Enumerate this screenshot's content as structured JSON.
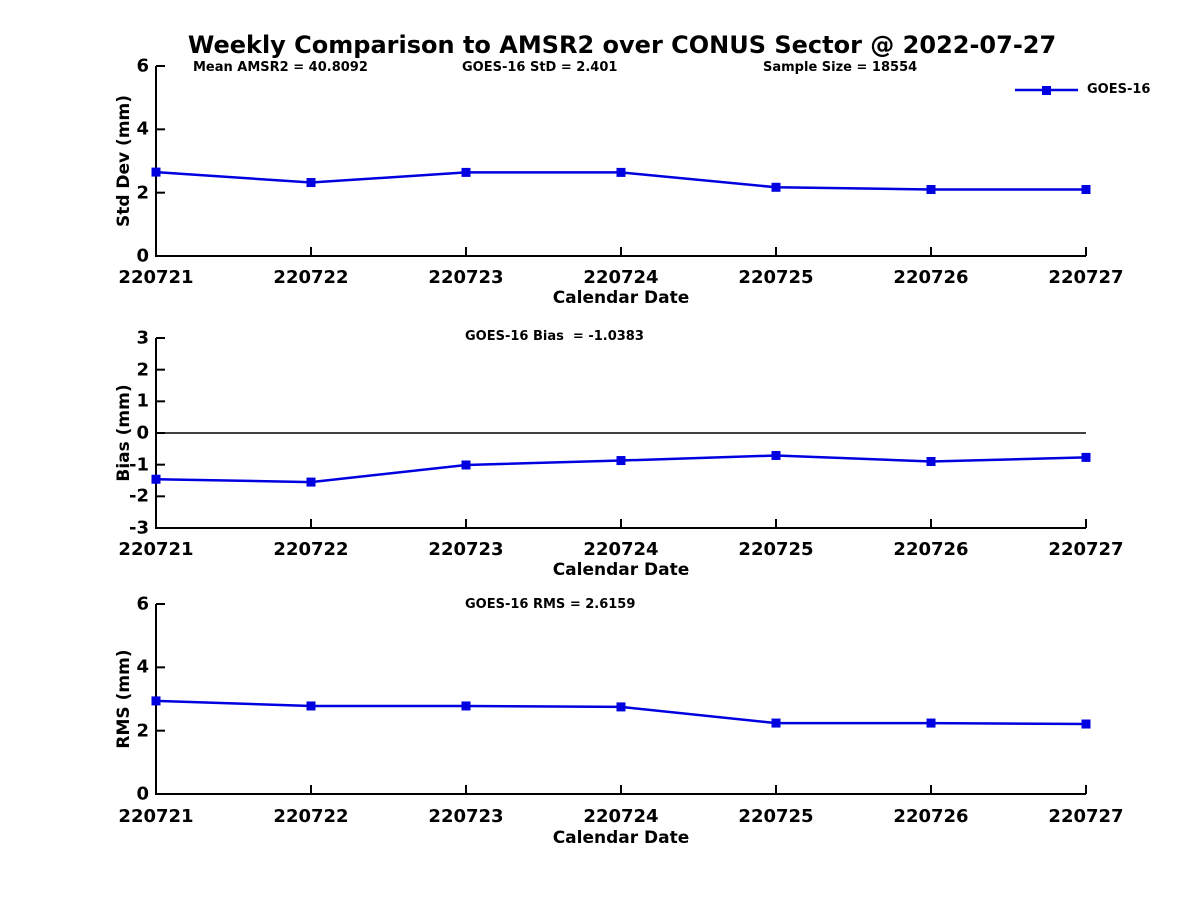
{
  "title": "Weekly Comparison to AMSR2 over CONUS Sector @ 2022-07-27",
  "legend": {
    "label": "GOES-16"
  },
  "colors": {
    "line": "#0000e0",
    "axis": "#000000"
  },
  "chart_data": [
    {
      "id": "std-dev",
      "type": "line",
      "ylabel": "Std Dev (mm)",
      "xlabel": "Calendar Date",
      "ylim": [
        0,
        6
      ],
      "yticks": [
        0,
        2,
        4,
        6
      ],
      "categories": [
        "220721",
        "220722",
        "220723",
        "220724",
        "220725",
        "220726",
        "220727"
      ],
      "series": [
        {
          "name": "GOES-16",
          "values": [
            2.65,
            2.32,
            2.64,
            2.64,
            2.17,
            2.1,
            2.1
          ]
        }
      ],
      "annotations": [
        "Mean AMSR2 = 40.8092",
        "GOES-16 StD = 2.401",
        "Sample Size = 18554"
      ],
      "zero_line": false,
      "legend_position": "top-right",
      "grid": false
    },
    {
      "id": "bias",
      "type": "line",
      "ylabel": "Bias (mm)",
      "xlabel": "Calendar Date",
      "ylim": [
        -3,
        3
      ],
      "yticks": [
        -3,
        -2,
        -1,
        0,
        1,
        2,
        3
      ],
      "categories": [
        "220721",
        "220722",
        "220723",
        "220724",
        "220725",
        "220726",
        "220727"
      ],
      "series": [
        {
          "name": "GOES-16",
          "values": [
            -1.46,
            -1.55,
            -1.01,
            -0.87,
            -0.71,
            -0.9,
            -0.77
          ]
        }
      ],
      "annotations": [
        "GOES-16 Bias  = -1.0383"
      ],
      "zero_line": true,
      "grid": false
    },
    {
      "id": "rms",
      "type": "line",
      "ylabel": "RMS (mm)",
      "xlabel": "Calendar Date",
      "ylim": [
        0,
        6
      ],
      "yticks": [
        0,
        2,
        4,
        6
      ],
      "categories": [
        "220721",
        "220722",
        "220723",
        "220724",
        "220725",
        "220726",
        "220727"
      ],
      "series": [
        {
          "name": "GOES-16",
          "values": [
            2.94,
            2.78,
            2.78,
            2.75,
            2.24,
            2.24,
            2.21
          ]
        }
      ],
      "annotations": [
        "GOES-16 RMS = 2.6159"
      ],
      "zero_line": false,
      "grid": false
    }
  ]
}
